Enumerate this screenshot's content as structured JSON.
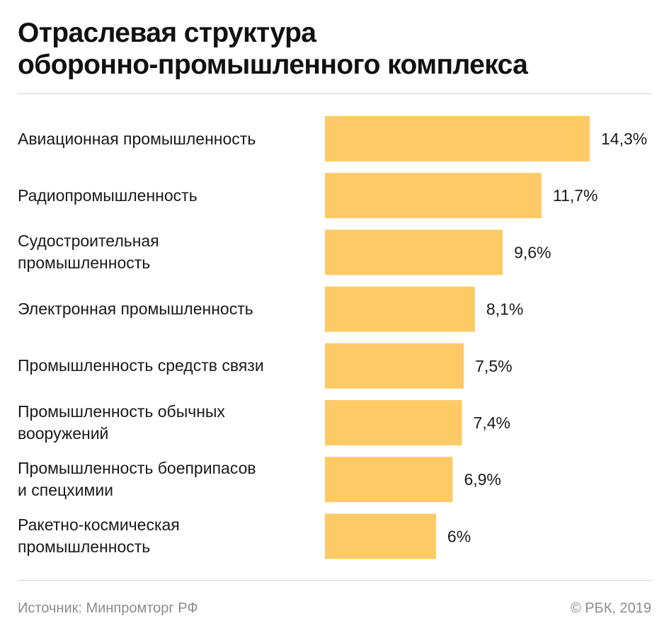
{
  "title_lines": [
    "Отраслевая структура",
    "оборонно-промышленного комплекса"
  ],
  "source": "Источник: Минпромторг РФ",
  "copyright": "© РБК, 2019",
  "colors": {
    "bar": "#fdca66",
    "text": "#1a1a1a",
    "muted": "#8c8c8c",
    "rule": "#d6d6d6"
  },
  "chart_data": {
    "type": "bar",
    "orientation": "horizontal",
    "title": "Отраслевая структура оборонно-промышленного комплекса",
    "categories": [
      "Авиационная промышленность",
      "Радиопромышленность",
      "Судостроительная промышленность",
      "Электронная промышленность",
      "Промышленность средств связи",
      "Промышленность обычных вооружений",
      "Промышленность боеприпасов и спецхимии",
      "Ракетно-космическая промышленность"
    ],
    "category_label_lines": [
      [
        "Авиационная промышленность"
      ],
      [
        "Радиопромышленность"
      ],
      [
        "Судостроительная",
        "промышленность"
      ],
      [
        "Электронная промышленность"
      ],
      [
        "Промышленность средств связи"
      ],
      [
        "Промышленность обычных",
        "вооружений"
      ],
      [
        "Промышленность боеприпасов",
        "и спецхимии"
      ],
      [
        "Ракетно-космическая",
        "промышленность"
      ]
    ],
    "values": [
      14.3,
      11.7,
      9.6,
      8.1,
      7.5,
      7.4,
      6.9,
      6
    ],
    "value_labels": [
      "14,3%",
      "11,7%",
      "9,6%",
      "8,1%",
      "7,5%",
      "7,4%",
      "6,9%",
      "6%"
    ],
    "unit": "%",
    "xlim": [
      0,
      14.3
    ],
    "grid": false,
    "legend": "none"
  }
}
